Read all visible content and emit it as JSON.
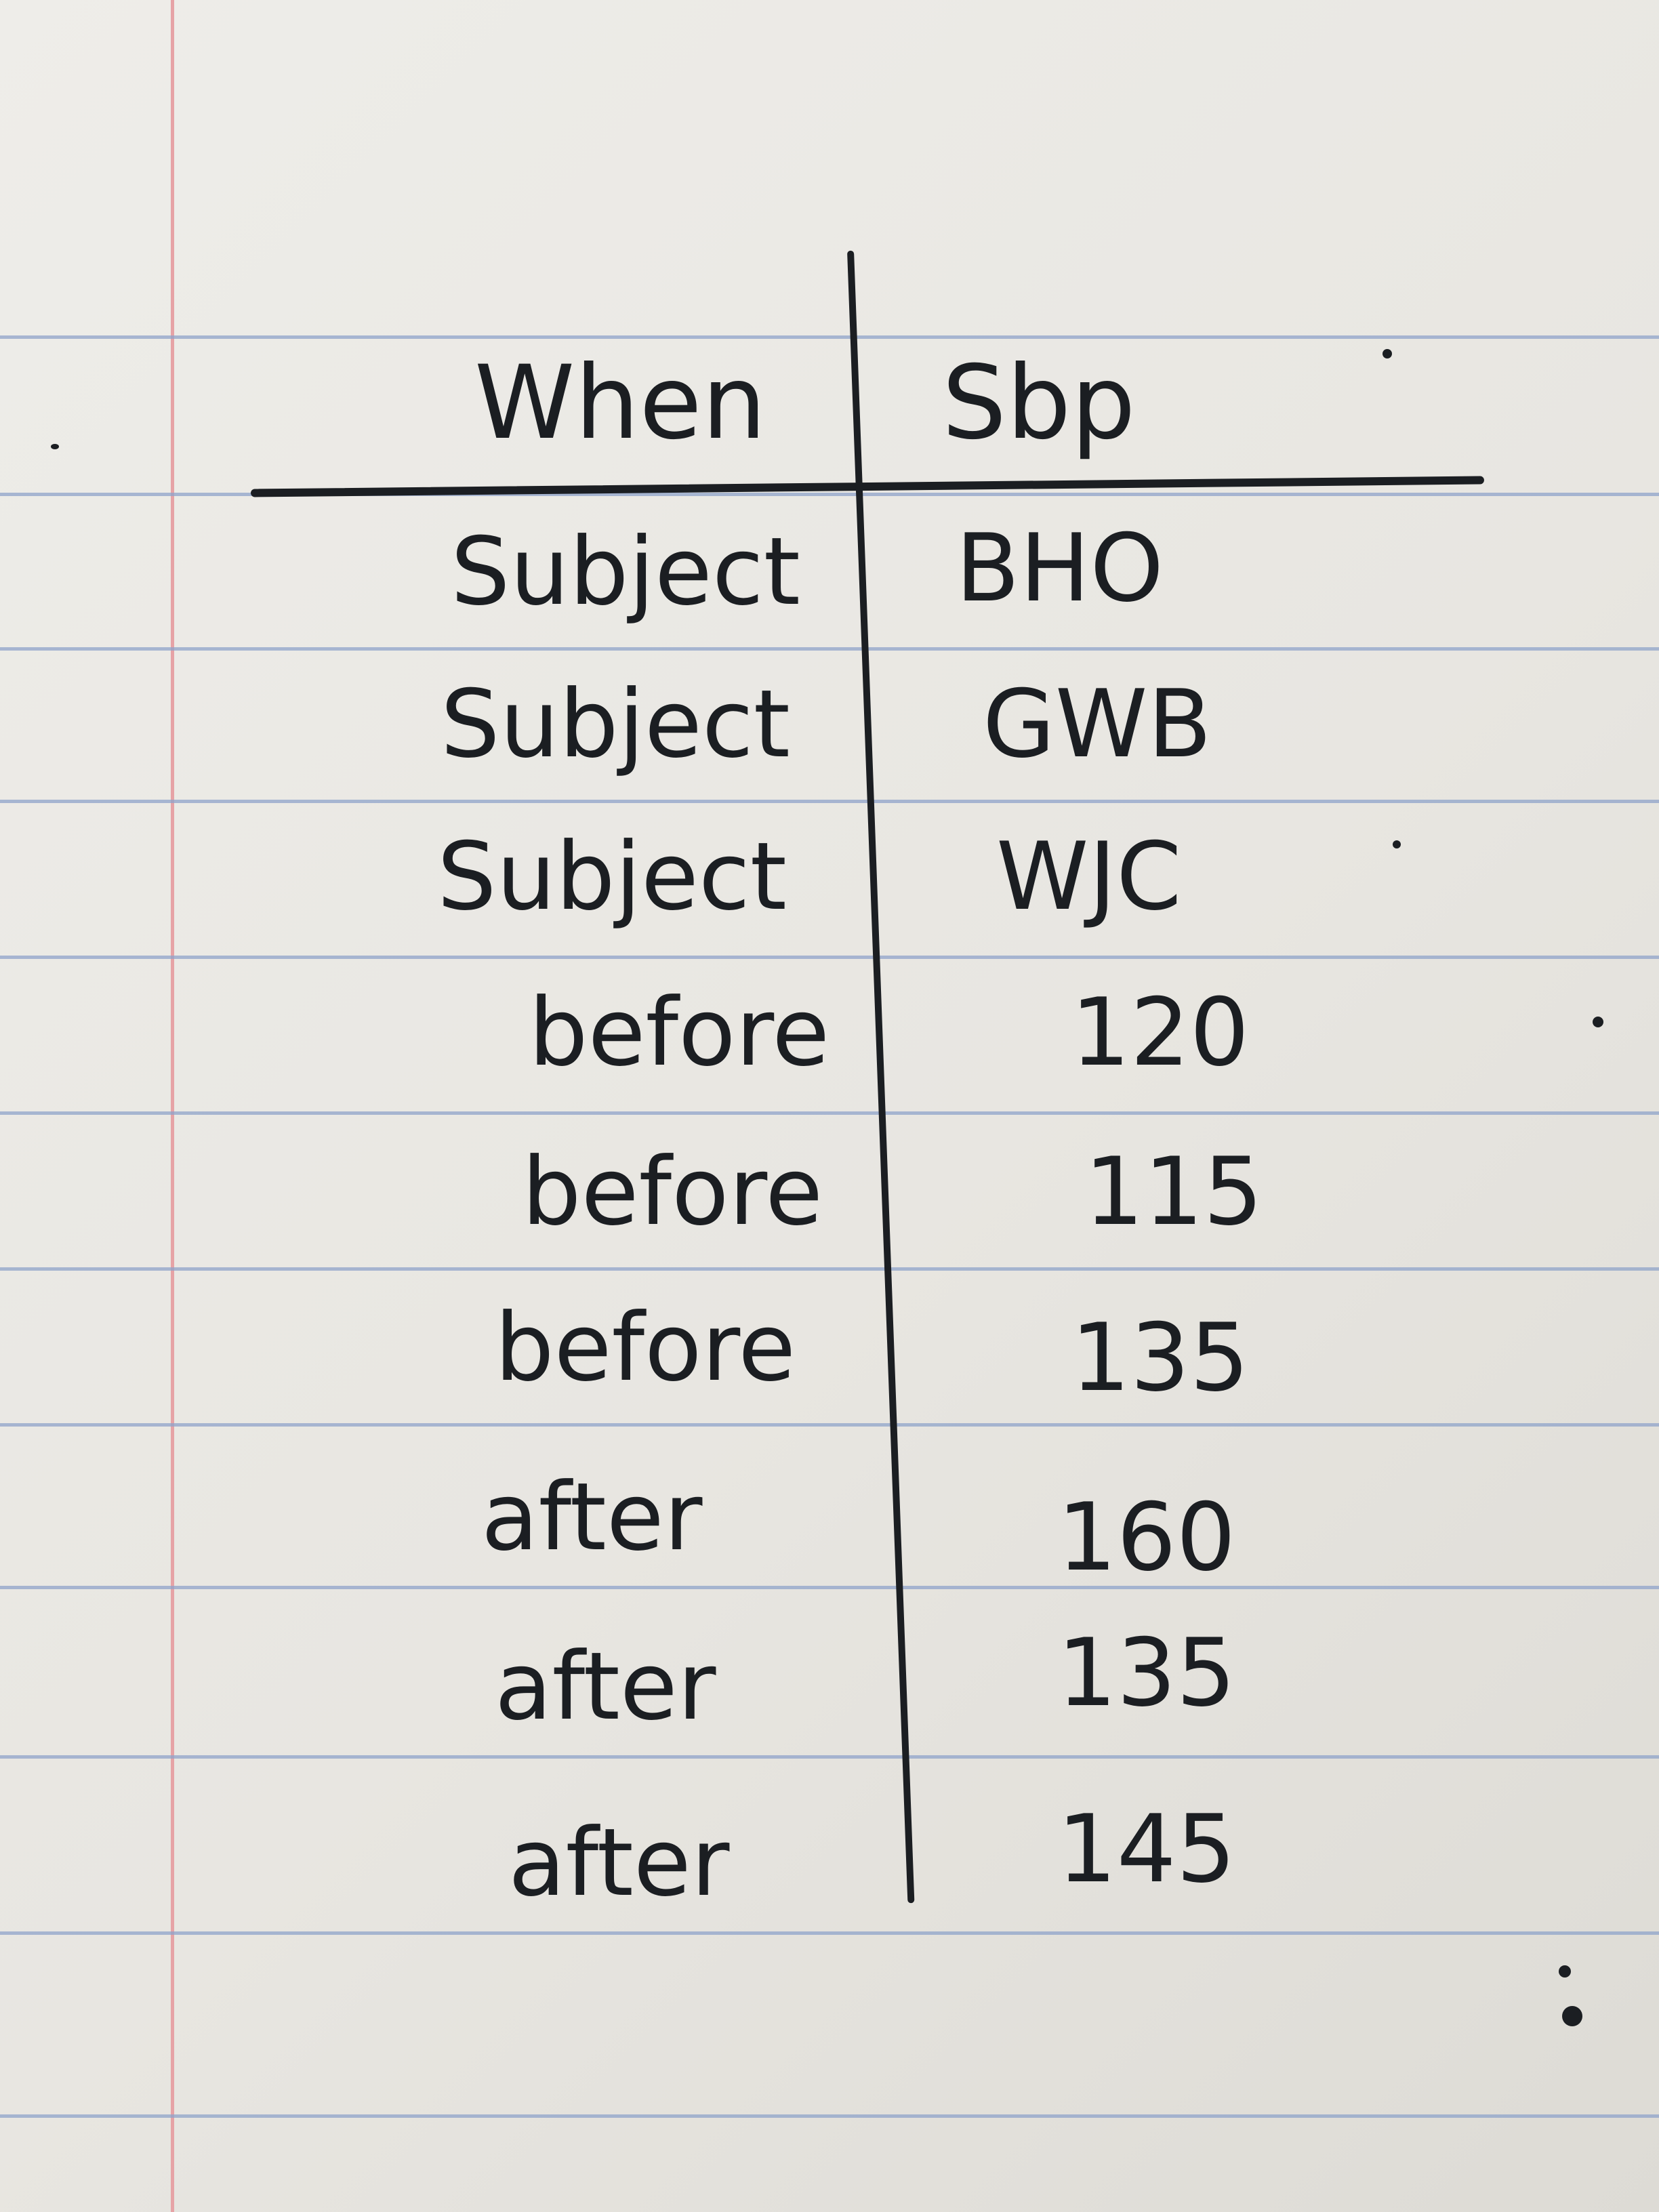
{
  "table": {
    "header": {
      "col1": "When",
      "col2": "Sbp"
    },
    "rows": [
      {
        "when": "Subject",
        "sbp": "BHO"
      },
      {
        "when": "Subject",
        "sbp": "GWB"
      },
      {
        "when": "Subject",
        "sbp": "WJC"
      },
      {
        "when": "before",
        "sbp": "120"
      },
      {
        "when": "before",
        "sbp": "115"
      },
      {
        "when": "before",
        "sbp": "135"
      },
      {
        "when": "after",
        "sbp": "160"
      },
      {
        "when": "after",
        "sbp": "135"
      },
      {
        "when": "after",
        "sbp": "145"
      }
    ]
  },
  "colors": {
    "ink": "#1b1e22",
    "rule_line": "#8fa3c9",
    "margin_line": "#e6a3a6",
    "paper": "#eeede9"
  }
}
